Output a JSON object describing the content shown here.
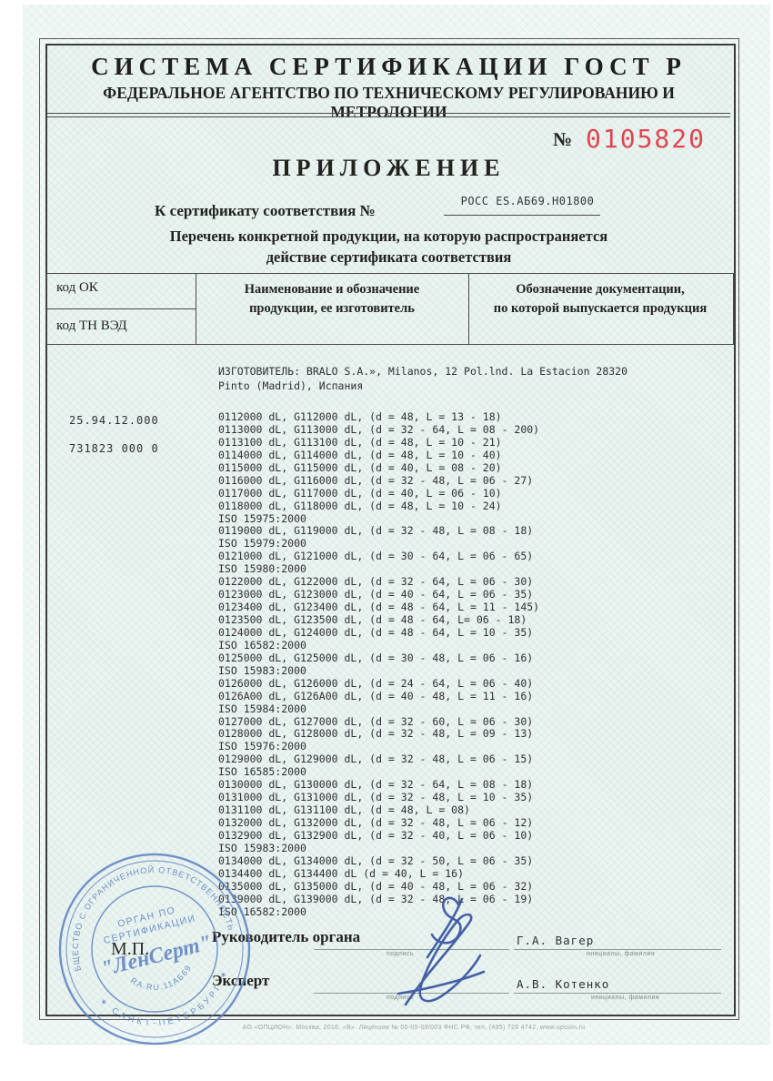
{
  "header": {
    "title": "СИСТЕМА СЕРТИФИКАЦИИ ГОСТ Р",
    "subtitle": "ФЕДЕРАЛЬНОЕ АГЕНТСТВО ПО ТЕХНИЧЕСКОМУ РЕГУЛИРОВАНИЮ И МЕТРОЛОГИИ"
  },
  "doc": {
    "number_label": "№",
    "number": "0105820",
    "number_color": "#df4652",
    "title": "ПРИЛОЖЕНИЕ",
    "cert_line_label": "К сертификату соответствия №",
    "cert_number": "РОСС ES.АБ69.Н01800",
    "purpose_line1": "Перечень конкретной продукции,  на которую распространяется",
    "purpose_line2": "действие сертификата соответствия"
  },
  "table": {
    "col1_row1": "код ОК",
    "col1_row2": "код ТН ВЭД",
    "col2_line1": "Наименование и обозначение",
    "col2_line2": "продукции, ее изготовитель",
    "col3_line1": "Обозначение документации,",
    "col3_line2": "по которой выпускается продукция"
  },
  "codes": {
    "ok": "25.94.12.000",
    "tnved": "731823 000 0"
  },
  "manufacturer": {
    "line1": "ИЗГОТОВИТЕЛЬ: BRALO S.A.», Milanos, 12 Pol.lnd. La Estacion 28320",
    "line2": "Pinto (Madrid), Испания"
  },
  "products": [
    "0112000 dL, G112000 dL, (d = 48, L = 13 - 18)",
    "0113000 dL, G113000 dL, (d = 32 - 64, L = 08 - 200)",
    "0113100 dL, G113100 dL, (d = 48, L = 10 - 21)",
    "0114000 dL, G114000 dL, (d = 48, L = 10 - 40)",
    "0115000 dL, G115000 dL, (d = 40, L = 08 - 20)",
    "0116000 dL, G116000 dL, (d = 32 - 48, L = 06 - 27)",
    "0117000 dL, G117000 dL, (d = 40, L = 06 - 10)",
    "0118000 dL, G118000 dL, (d = 48, L = 10 - 24)",
    "ISO 15975:2000",
    "0119000 dL, G119000 dL, (d = 32 - 48, L = 08 - 18)",
    "ISO 15979:2000",
    "0121000 dL, G121000 dL, (d = 30 - 64, L = 06 - 65)",
    "ISO 15980:2000",
    "0122000 dL, G122000 dL, (d = 32 - 64, L = 06 - 30)",
    "0123000 dL, G123000 dL, (d = 40 - 64, L = 06 - 35)",
    "0123400 dL, G123400 dL, (d = 48 - 64, L = 11 - 145)",
    "0123500 dL, G123500 dL, (d = 48 - 64, L= 06 - 18)",
    "0124000 dL, G124000 dL, (d = 48 - 64, L = 10 - 35)",
    "ISO 16582:2000",
    "0125000 dL, G125000 dL, (d = 30 - 48, L = 06 - 16)",
    "ISO 15983:2000",
    "0126000 dL, G126000 dL, (d = 24 - 64, L = 06 - 40)",
    "0126A00 dL, G126A00 dL, (d = 40 - 48, L = 11 - 16)",
    "ISO 15984:2000",
    "0127000 dL, G127000 dL, (d = 32 - 60, L = 06 - 30)",
    "0128000 dL, G128000 dL, (d = 32 - 48, L = 09 - 13)",
    "ISO 15976:2000",
    "0129000 dL, G129000 dL, (d = 32 - 48, L = 06 - 15)",
    "ISO 16585:2000",
    "0130000 dL, G130000 dL, (d = 32 - 64, L = 08 - 18)",
    "0131000 dL, G131000 dL, (d = 32 - 48, L = 10 - 35)",
    "0131100 dL, G131100 dL, (d = 48, L = 08)",
    "0132000 dL, G132000 dL, (d = 32 - 48, L = 06 - 12)",
    "0132900 dL, G132900 dL, (d = 32 - 40, L = 06 - 10)",
    "ISO 15983:2000",
    "0134000 dL, G134000 dL, (d = 32 - 50, L = 06 - 35)",
    "0134400 dL, G134400 dL (d = 40, L = 16)",
    "0135000 dL, G135000 dL, (d = 40 - 48, L = 06 - 32)",
    "0139000 dL, G139000 dL, (d = 32 - 48, L = 06 - 19)",
    "ISO 16582:2000"
  ],
  "signatures": {
    "row1_role": "Руководитель органа",
    "row1_sign_label": "подпись",
    "row1_name": "Г.А. Вагер",
    "row1_name_label": "инициалы, фамилия",
    "row2_role": "Эксперт",
    "row2_sign_label": "подпись",
    "row2_name": "А.В. Котенко",
    "row2_name_label": "инициалы, фамилия"
  },
  "stamp": {
    "ring_top": "ОБЩЕСТВО С ОГРАНИЧЕННОЙ ОТВЕТСТВЕННОСТЬЮ",
    "ring_bottom": "✶ САНКТ-ПЕТЕРБУРГ ✶",
    "org_line1": "ОРГАН ПО",
    "org_line2": "СЕРТИФИКАЦИИ",
    "name": "\"ЛенСерт\"",
    "reg": "RA.RU.11АБ69",
    "mp": "М.П.",
    "ink_color": "#5f83c4"
  },
  "footer": "АО «ОПЦИОН», Москва, 2016, «В».  Лицензия № 05-05-09/003 ФНС РФ,  тел. (495) 726 4742,  www.opcion.ru"
}
